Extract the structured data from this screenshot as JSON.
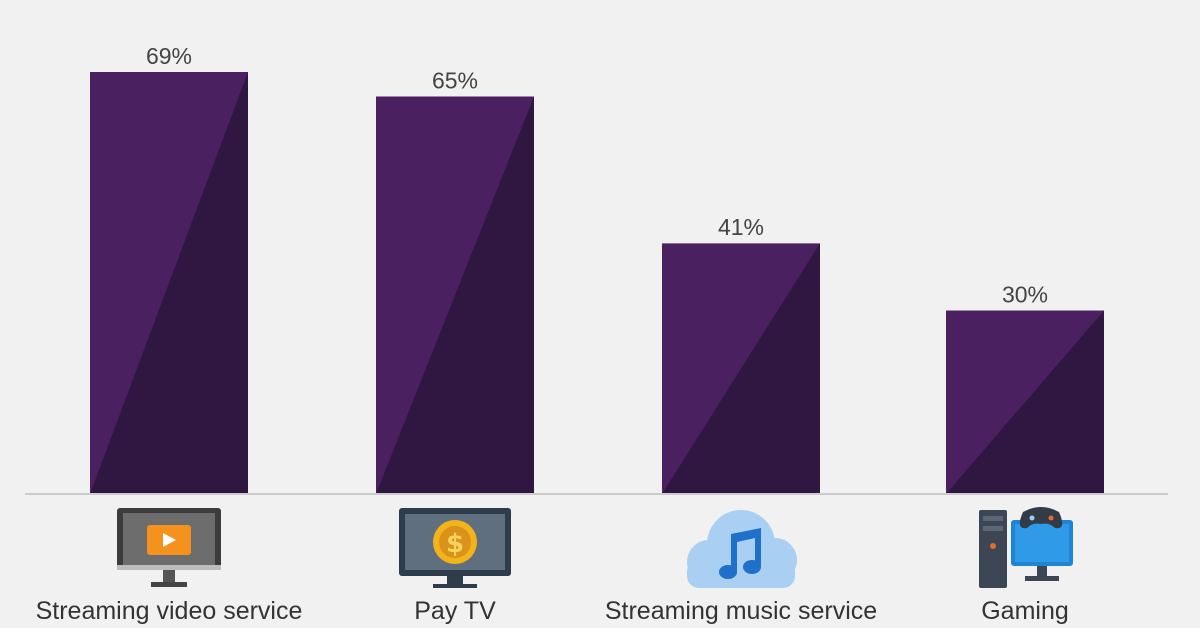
{
  "colors": {
    "background": "#f1f1f1",
    "bar_light": "#4a2060",
    "bar_dark": "#2f1742",
    "baseline": "#cccccc",
    "label_text": "#444444"
  },
  "chart_data": {
    "type": "bar",
    "categories": [
      "Streaming video service",
      "Pay TV",
      "Streaming music service",
      "Gaming"
    ],
    "values": [
      69,
      65,
      41,
      30
    ],
    "value_labels": [
      "69%",
      "65%",
      "41%",
      "30%"
    ],
    "icons": [
      "tv-play-icon",
      "tv-dollar-icon",
      "cloud-music-icon",
      "pc-gaming-icon"
    ],
    "ylim": [
      0,
      69
    ],
    "grid": false,
    "legend": "none"
  }
}
